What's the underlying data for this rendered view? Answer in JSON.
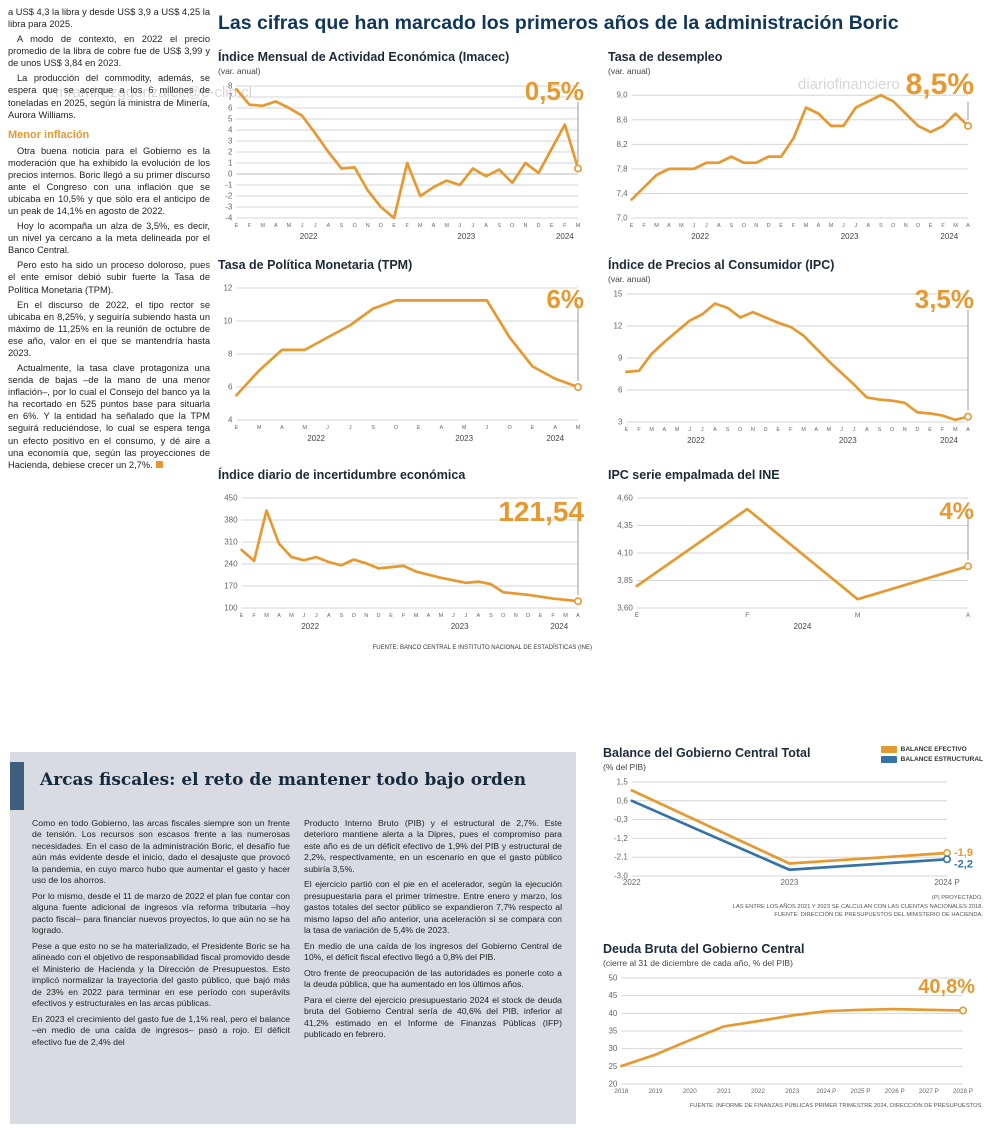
{
  "header": {
    "title": "Las cifras que han marcado los primeros años de la administración Boric"
  },
  "article": {
    "paragraphs": [
      "a US$ 4,3 la libra y desde US$ 3,9 a US$ 4,25 la libra para 2025.",
      "A modo de contexto, en 2022 el precio promedio de la libra de cobre fue de US$ 3,99 y de unos US$ 3,84 en 2023.",
      "La producción del commodity, además, se espera que se acerque a los 6 millones de toneladas en 2025, según la ministra de Minería, Aurora Williams."
    ],
    "heading": "Menor inflación",
    "paragraphs2": [
      "Otra buena noticia para el Gobierno es la moderación que ha exhibido la evolución de los precios internos. Boric llegó a su primer discurso ante el Congreso con una inflación que se ubicaba en 10,5% y que sólo era el anticipo de un peak de 14,1% en agosto de 2022.",
      "Hoy lo acompaña un alza de 3,5%, es decir, un nivel ya cercano a la meta delineada por el Banco Central.",
      "Pero esto ha sido un proceso doloroso, pues el ente emisor debió subir fuerte la Tasa de Política Monetaria (TPM).",
      "En el discurso de 2022, el tipo rector se ubicaba en 8,25%, y seguiría subiendo hasta un máximo de 11,25% en la reunión de octubre de ese año, valor en el que se mantendría hasta 2023.",
      "Actualmente, la tasa clave protagoniza una senda de bajas –de la mano de una menor inflación–, por lo cual el Consejo del banco ya la ha recortado en 525 puntos base para situarla en 6%. Y la entidad ha señalado que la TPM seguirá reduciéndose, lo cual se espera tenga un efecto positivo en el consumo, y dé aire a una economía que, según las proyecciones de Hacienda, debiese crecer un 2,7%."
    ]
  },
  "source_note": "FUENTE: BANCO CENTRAL E INSTITUTO NACIONAL DE ESTADÍSTICAS (INE)",
  "watermarks": {
    "w1": "mramirezggonzalek@e-clip.cl",
    "w2": "diariofinanciero",
    "w3": "...ero#4@gonzalek...@e-clip.cl"
  },
  "fiscal": {
    "title": "Arcas fiscales: el reto de mantener todo bajo orden",
    "col1": [
      "Como en todo Gobierno, las arcas fiscales siempre son un frente de tensión. Los recursos son escasos frente a las numerosas necesidades. En el caso de la administración Boric, el desafío fue aún más evidente desde el inicio, dado el desajuste que provocó la pandemia, en cuyo marco hubo que aumentar el gasto y hacer uso de los ahorros.",
      "Por lo mismo, desde el 11 de marzo de 2022 el plan fue contar con alguna fuente adicional de ingresos vía reforma tributaria –hoy pacto fiscal– para financiar nuevos proyectos, lo que aún no se ha logrado.",
      "Pese a que esto no se ha materializado, el Presidente Boric se ha alineado con el objetivo de responsabilidad fiscal promovido desde el Ministerio de Hacienda y la Dirección de Presupuestos. Esto implicó normalizar la trayectoria del gasto público, que bajó más de 23% en 2022 para terminar en ese período con superávits efectivos y estructurales en las arcas públicas.",
      "En 2023 el crecimiento del gasto fue de 1,1% real, pero el balance –en medio de una caída de ingresos– pasó a rojo. El déficit efectivo fue de 2,4% del"
    ],
    "col2": [
      "Producto Interno Bruto (PIB) y el estructural de 2,7%. Este deterioro mantiene alerta a la Dipres, pues el compromiso para este año es de un déficit efectivo de 1,9% del PIB y estructural de 2,2%, respectivamente, en un escenario en que el gasto público subiría 3,5%.",
      "El ejercicio partió con el pie en el acelerador, según la ejecución presupuestaria para el primer trimestre. Entre enero y marzo, los gastos totales del sector público se expandieron 7,7% respecto al mismo lapso del año anterior, una aceleración si se compara con la tasa de variación de 5,4% de 2023.",
      "En medio de una caída de los ingresos del Gobierno Central de 10%, el déficit fiscal efectivo llegó a 0,8% del PIB.",
      "Otro frente de preocupación de las autoridades es ponerle coto a la deuda pública, que ha aumentado en los últimos años.",
      "Para el cierre del ejercicio presupuestario 2024 el stock de deuda bruta del Gobierno Central sería de 40,6% del PIB, inferior al 41,2% estimado en el Informe de Finanzas Públicas (IFP) publicado en febrero."
    ]
  },
  "theme": {
    "accent_orange": "#E59930",
    "accent_blue": "#3572A8",
    "title_navy": "#10365B",
    "panel_gray": "#d8dce2",
    "accent_bar_blue": "#3F5D7D"
  },
  "chart_data": [
    {
      "type": "line",
      "title": "Índice Mensual de Actividad Económica (Imacec)",
      "subtitle": "(var. anual)",
      "callout": "0,5%",
      "ylim": [
        -4,
        8
      ],
      "yticks": [
        [
          8,
          "8"
        ],
        [
          7,
          "7"
        ],
        [
          6,
          "6"
        ],
        [
          5,
          "5"
        ],
        [
          4,
          "4"
        ],
        [
          3,
          "3"
        ],
        [
          2,
          "2"
        ],
        [
          1,
          "1"
        ],
        [
          0,
          "0"
        ],
        [
          -1,
          "-1"
        ],
        [
          -2,
          "-2"
        ],
        [
          -3,
          "-3"
        ],
        [
          -4,
          "-4"
        ]
      ],
      "xticks": [
        "E",
        "F",
        "M",
        "A",
        "M",
        "J",
        "J",
        "A",
        "S",
        "O",
        "N",
        "D",
        "E",
        "F",
        "M",
        "A",
        "M",
        "J",
        "J",
        "A",
        "S",
        "O",
        "N",
        "D",
        "E",
        "F",
        "M"
      ],
      "years": [
        {
          "label": "2022",
          "from": 0,
          "to": 11
        },
        {
          "label": "2023",
          "from": 12,
          "to": 23
        },
        {
          "label": "2024",
          "from": 24,
          "to": 26
        }
      ],
      "callout_line": true,
      "series": [
        {
          "name": "Imacec var. anual",
          "color": "#E59930",
          "values": [
            7.7,
            6.3,
            6.2,
            6.6,
            6.0,
            5.3,
            3.7,
            2.0,
            0.5,
            0.6,
            -1.5,
            -3.0,
            -4.0,
            1.0,
            -2.0,
            -1.2,
            -0.6,
            -1.0,
            0.5,
            -0.2,
            0.4,
            -0.8,
            1.0,
            0.1,
            2.3,
            4.5,
            0.5
          ]
        }
      ]
    },
    {
      "type": "line",
      "title": "Tasa de desempleo",
      "subtitle": "(var. anual)",
      "callout": "8,5%",
      "ylim": [
        7.0,
        9.15
      ],
      "yticks": [
        [
          9.0,
          "9,0"
        ],
        [
          8.6,
          "8,6"
        ],
        [
          8.2,
          "8,2"
        ],
        [
          7.8,
          "7,8"
        ],
        [
          7.4,
          "7,4"
        ],
        [
          7.0,
          "7,0"
        ]
      ],
      "xticks": [
        "E",
        "F",
        "M",
        "A",
        "M",
        "J",
        "J",
        "A",
        "S",
        "O",
        "N",
        "D",
        "E",
        "F",
        "M",
        "A",
        "M",
        "J",
        "J",
        "A",
        "S",
        "O",
        "N",
        "D",
        "E",
        "F",
        "M",
        "A"
      ],
      "years": [
        {
          "label": "2022",
          "from": 0,
          "to": 11
        },
        {
          "label": "2023",
          "from": 12,
          "to": 23
        },
        {
          "label": "2024",
          "from": 24,
          "to": 27
        }
      ],
      "callout_line": true,
      "series": [
        {
          "name": "Tasa de desempleo",
          "color": "#E59930",
          "values": [
            7.3,
            7.5,
            7.7,
            7.8,
            7.8,
            7.8,
            7.9,
            7.9,
            8.0,
            7.9,
            7.9,
            8.0,
            8.0,
            8.3,
            8.8,
            8.7,
            8.5,
            8.5,
            8.8,
            8.9,
            9.0,
            8.9,
            8.7,
            8.5,
            8.4,
            8.5,
            8.7,
            8.5
          ]
        }
      ]
    },
    {
      "type": "line",
      "title": "Tasa de Política Monetaria (TPM)",
      "subtitle": "",
      "callout": "6%",
      "ylim": [
        4,
        12
      ],
      "yticks": [
        [
          12,
          "12"
        ],
        [
          10,
          "10"
        ],
        [
          8,
          "8"
        ],
        [
          6,
          "6"
        ],
        [
          4,
          "4"
        ]
      ],
      "xticks": [
        "E",
        "M",
        "A",
        "M",
        "J",
        "J",
        "S",
        "O",
        "E",
        "A",
        "M",
        "J",
        "O",
        "E",
        "A",
        "M"
      ],
      "years": [
        {
          "label": "2022",
          "from": 0,
          "to": 7
        },
        {
          "label": "2023",
          "from": 8,
          "to": 12
        },
        {
          "label": "2024",
          "from": 13,
          "to": 15
        }
      ],
      "callout_line": true,
      "series": [
        {
          "name": "TPM",
          "color": "#E59930",
          "values": [
            5.5,
            7.0,
            8.25,
            8.25,
            9.0,
            9.75,
            10.75,
            11.25,
            11.25,
            11.25,
            11.25,
            11.25,
            9.0,
            7.25,
            6.5,
            6.0
          ]
        }
      ]
    },
    {
      "type": "line",
      "title": "Índice de Precios al Consumidor (IPC)",
      "subtitle": "(var. anual)",
      "callout": "3,5%",
      "ylim": [
        3,
        15
      ],
      "yticks": [
        [
          15,
          "15"
        ],
        [
          12,
          "12"
        ],
        [
          9,
          "9"
        ],
        [
          6,
          "6"
        ],
        [
          3,
          "3"
        ]
      ],
      "xticks": [
        "E",
        "F",
        "M",
        "A",
        "M",
        "J",
        "J",
        "A",
        "S",
        "O",
        "N",
        "D",
        "E",
        "F",
        "M",
        "A",
        "M",
        "J",
        "J",
        "A",
        "S",
        "O",
        "N",
        "D",
        "E",
        "F",
        "M",
        "A"
      ],
      "years": [
        {
          "label": "2022",
          "from": 0,
          "to": 11
        },
        {
          "label": "2023",
          "from": 12,
          "to": 23
        },
        {
          "label": "2024",
          "from": 24,
          "to": 27
        }
      ],
      "callout_line": true,
      "series": [
        {
          "name": "IPC var. anual",
          "color": "#E59930",
          "values": [
            7.7,
            7.8,
            9.4,
            10.5,
            11.5,
            12.5,
            13.1,
            14.1,
            13.7,
            12.8,
            13.3,
            12.8,
            12.3,
            11.9,
            11.1,
            9.9,
            8.7,
            7.6,
            6.5,
            5.3,
            5.1,
            5.0,
            4.8,
            3.9,
            3.8,
            3.6,
            3.2,
            3.5
          ]
        }
      ]
    },
    {
      "type": "line",
      "title": "Índice diario de incertidumbre económica",
      "subtitle": "",
      "callout": "121,54",
      "ylim": [
        100,
        450
      ],
      "yticks": [
        [
          450,
          "450"
        ],
        [
          380,
          "380"
        ],
        [
          310,
          "310"
        ],
        [
          240,
          "240"
        ],
        [
          170,
          "170"
        ],
        [
          100,
          "100"
        ]
      ],
      "xticks": [
        "E",
        "F",
        "M",
        "A",
        "M",
        "J",
        "J",
        "A",
        "S",
        "O",
        "N",
        "D",
        "E",
        "F",
        "M",
        "A",
        "M",
        "J",
        "J",
        "A",
        "S",
        "O",
        "N",
        "D",
        "E",
        "F",
        "M",
        "A"
      ],
      "years": [
        {
          "label": "2022",
          "from": 0,
          "to": 11
        },
        {
          "label": "2023",
          "from": 12,
          "to": 23
        },
        {
          "label": "2024",
          "from": 24,
          "to": 27
        }
      ],
      "callout_line": true,
      "series": [
        {
          "name": "Incertidumbre económica",
          "color": "#E59930",
          "values": [
            285,
            250,
            410,
            305,
            262,
            252,
            262,
            246,
            236,
            254,
            242,
            226,
            230,
            234,
            216,
            206,
            196,
            188,
            180,
            184,
            176,
            150,
            146,
            142,
            136,
            130,
            126,
            121.54
          ]
        }
      ]
    },
    {
      "type": "line",
      "title": "IPC serie empalmada del INE",
      "subtitle": "",
      "callout": "4%",
      "ylim": [
        3.6,
        4.6
      ],
      "yticks": [
        [
          4.6,
          "4,60"
        ],
        [
          4.35,
          "4,35"
        ],
        [
          4.1,
          "4,10"
        ],
        [
          3.85,
          "3,85"
        ],
        [
          3.6,
          "3,60"
        ]
      ],
      "xticks": [
        "E",
        "F",
        "M",
        "A"
      ],
      "xfs": 6.5,
      "years": [
        {
          "label": "2024",
          "from": 0,
          "to": 3
        }
      ],
      "callout_line": true,
      "series": [
        {
          "name": "IPC empalmado",
          "color": "#E59930",
          "values": [
            3.8,
            4.5,
            3.68,
            3.98
          ]
        }
      ]
    },
    {
      "type": "line",
      "title": "Balance del Gobierno Central Total",
      "subtitle": "(% del PIB)",
      "ylim": [
        -3.0,
        1.5
      ],
      "yticks": [
        [
          1.5,
          "1,5"
        ],
        [
          0.6,
          "0,6"
        ],
        [
          -0.3,
          "-0,3"
        ],
        [
          -1.2,
          "-1,2"
        ],
        [
          -2.1,
          "-2,1"
        ],
        [
          -3.0,
          "-3,0"
        ]
      ],
      "xticks": [
        "2022",
        "2023",
        "2024 P"
      ],
      "xfs": 8,
      "mr": 36,
      "legend": [
        {
          "label": "BALANCE EFECTIVO",
          "color": "#E59930"
        },
        {
          "label": "BALANCE ESTRUCTURAL",
          "color": "#3572A8"
        }
      ],
      "series": [
        {
          "name": "Balance efectivo",
          "color": "#E59930",
          "values": [
            1.1,
            -2.4,
            -1.9
          ],
          "end_label": "-1,9"
        },
        {
          "name": "Balance estructural",
          "color": "#3572A8",
          "values": [
            0.6,
            -2.7,
            -2.2
          ],
          "end_label": "-2,2",
          "end_dy": 8
        }
      ],
      "footnotes": [
        "(P) PROYECTADO.",
        "LAS ENTRE LOS AÑOS 2021 Y 2023 SE CALCULAN CON LAS CUENTAS NACIONALES 2018.",
        "FUENTE: DIRECCIÓN DE PRESUPUESTOS DEL MINISTERIO DE HACIENDA."
      ]
    },
    {
      "type": "line",
      "title": "Deuda Bruta del Gobierno Central",
      "subtitle": "(cierre al 31 de diciembre de cada año, % del PIB)",
      "callout": "40,8%",
      "ylim": [
        20,
        50
      ],
      "yticks": [
        [
          50,
          "50"
        ],
        [
          45,
          "45"
        ],
        [
          40,
          "40"
        ],
        [
          35,
          "35"
        ],
        [
          30,
          "30"
        ],
        [
          25,
          "25"
        ],
        [
          20,
          "20"
        ]
      ],
      "xticks": [
        "2018",
        "2019",
        "2020",
        "2021",
        "2022",
        "2023",
        "2024 P",
        "2025 P",
        "2026 P",
        "2027 P",
        "2028 P"
      ],
      "xfs": 6.3,
      "mr": 20,
      "series": [
        {
          "name": "Deuda bruta",
          "color": "#E59930",
          "values": [
            25.1,
            28.3,
            32.4,
            36.3,
            37.8,
            39.4,
            40.6,
            41.0,
            41.2,
            41.0,
            40.8
          ]
        }
      ],
      "footnotes": [
        "FUENTE: INFORME DE FINANZAS PÚBLICAS PRIMER TRIMESTRE 2024, DIRECCIÓN DE PRESUPUESTOS."
      ]
    }
  ]
}
